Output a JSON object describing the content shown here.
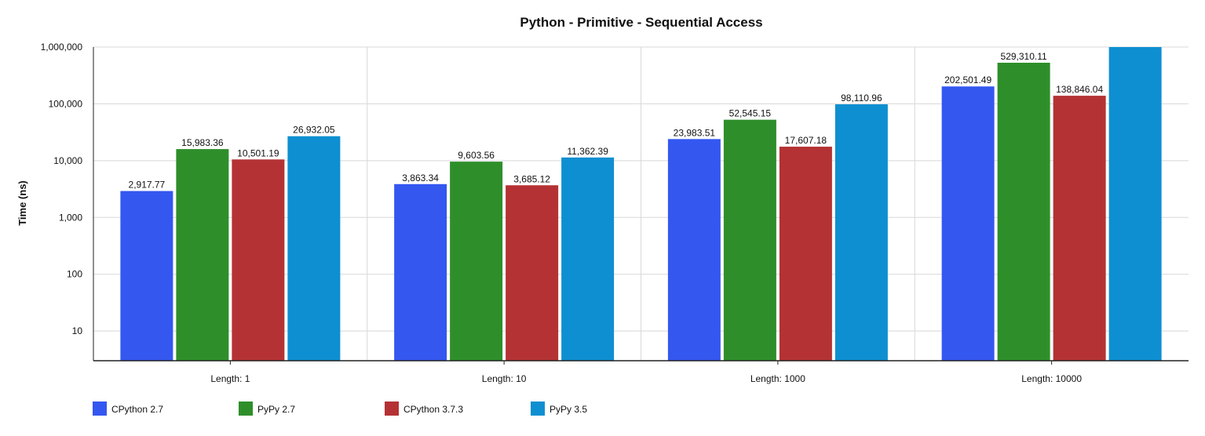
{
  "colors": {
    "grid": "#d8d8d8",
    "axis": "#222222",
    "text": "#111111"
  },
  "chart_data": {
    "type": "bar",
    "title": "Python - Primitive - Sequential Access",
    "xlabel": "",
    "ylabel": "Time (ns)",
    "yscale": "log",
    "ylim": [
      3,
      1000000
    ],
    "yticks": [
      10,
      100,
      1000,
      10000,
      100000,
      1000000
    ],
    "ytick_labels": [
      "10",
      "100",
      "1,000",
      "10,000",
      "100,000",
      "1,000,000"
    ],
    "grid": true,
    "legend_position": "bottom-left",
    "categories": [
      "Length: 1",
      "Length: 10",
      "Length: 1000",
      "Length: 10000"
    ],
    "series": [
      {
        "name": "CPython 2.7",
        "color": "#3457f0",
        "values": [
          2917.77,
          3863.34,
          23983.51,
          202501.49
        ],
        "labels": [
          "2,917.77",
          "3,863.34",
          "23,983.51",
          "202,501.49"
        ]
      },
      {
        "name": "PyPy 2.7",
        "color": "#2e8f2a",
        "values": [
          15983.36,
          9603.56,
          52545.15,
          529310.11
        ],
        "labels": [
          "15,983.36",
          "9,603.56",
          "52,545.15",
          "529,310.11"
        ]
      },
      {
        "name": "CPython 3.7.3",
        "color": "#b43234",
        "values": [
          10501.19,
          3685.12,
          17607.18,
          138846.04
        ],
        "labels": [
          "10,501.19",
          "3,685.12",
          "17,607.18",
          "138,846.04"
        ]
      },
      {
        "name": "PyPy 3.5",
        "color": "#0e8fd1",
        "values": [
          26932.05,
          11362.39,
          98110.96,
          1000000
        ],
        "labels": [
          "26,932.05",
          "11,362.39",
          "98,110.96",
          ""
        ]
      }
    ]
  }
}
